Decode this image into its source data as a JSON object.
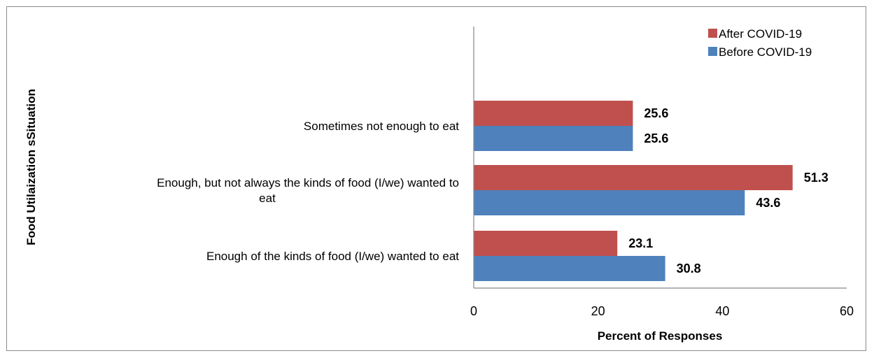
{
  "chart_data": {
    "type": "bar",
    "orientation": "horizontal",
    "categories": [
      "Sometimes not enough to eat",
      "Enough, but not always the kinds of food (I/we) wanted to eat",
      "Enough of the kinds of food (I/we) wanted to eat"
    ],
    "category_lines": [
      [
        "Sometimes not enough to eat"
      ],
      [
        "Enough, but not always the kinds of food (I/we) wanted to",
        "eat"
      ],
      [
        "Enough of the kinds of food (I/we) wanted to eat"
      ]
    ],
    "series": [
      {
        "name": "After COVID-19",
        "color": "#c0504d",
        "values": [
          25.6,
          51.3,
          23.1
        ],
        "labels": [
          "25.6",
          "51.3",
          "23.1"
        ]
      },
      {
        "name": "Before COVID-19",
        "color": "#4f81bd",
        "values": [
          25.6,
          43.6,
          30.8
        ],
        "labels": [
          "25.6",
          "43.6",
          "30.8"
        ]
      }
    ],
    "xlabel": "Percent of Responses",
    "ylabel": "Food Utilaization sSituation",
    "xlim": [
      0,
      60
    ],
    "xticks": [
      0,
      20,
      40,
      60
    ],
    "xtick_labels": [
      "0",
      "20",
      "40",
      "60"
    ],
    "grid": false,
    "legend_position": "top-right"
  }
}
